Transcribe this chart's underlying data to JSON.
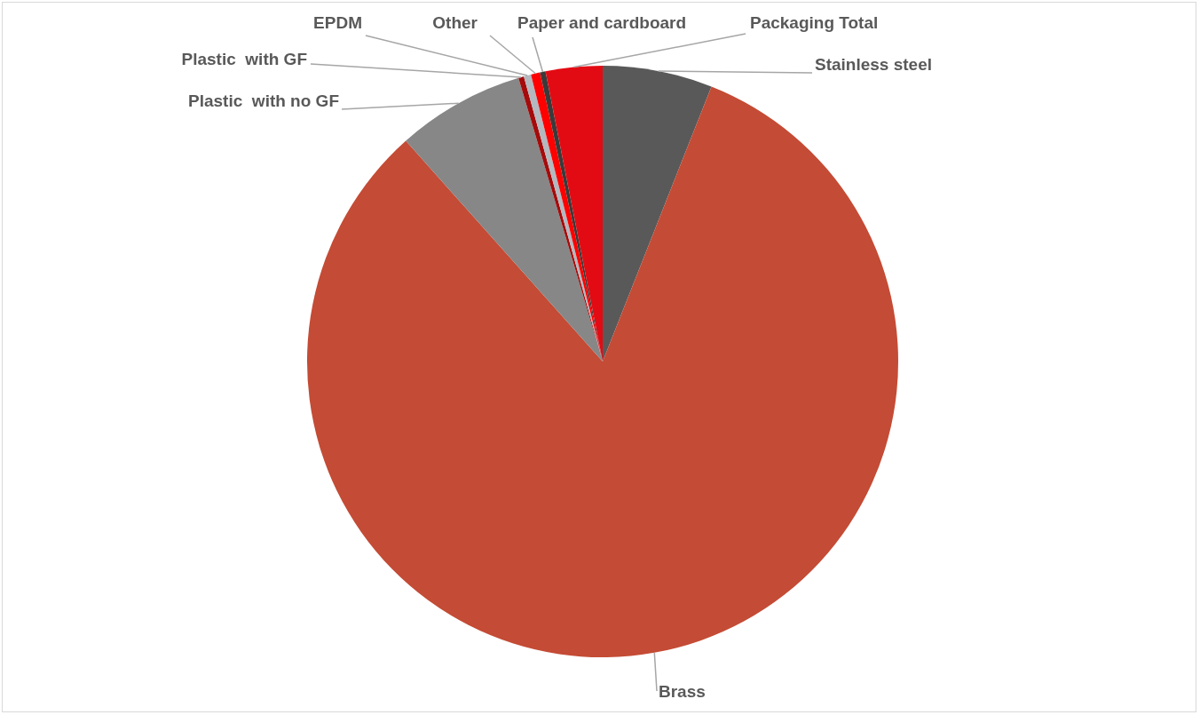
{
  "chart_data": {
    "type": "pie",
    "categories": [
      "Stainless steel",
      "Brass",
      "Plastic  with no GF",
      "Plastic  with GF",
      "EPDM",
      "Other",
      "Paper and cardboard",
      "Packaging Total"
    ],
    "values": [
      6.0,
      82.4,
      7.0,
      0.3,
      0.4,
      0.5,
      0.3,
      3.1
    ],
    "colors": [
      "#595959",
      "#c44b35",
      "#878787",
      "#a50b0b",
      "#b4b8bf",
      "#ff0000",
      "#3a3a3a",
      "#e30b13"
    ],
    "legend": false
  }
}
